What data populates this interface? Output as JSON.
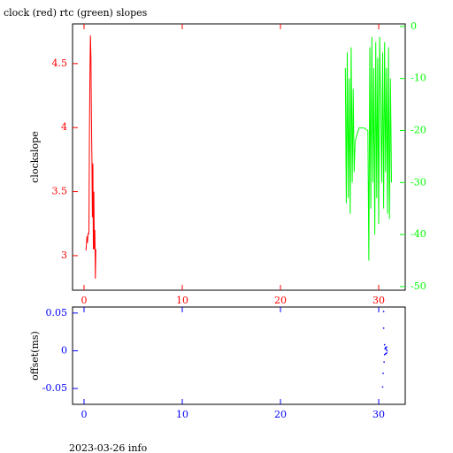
{
  "footer": "2023-03-26 info",
  "chart_data": [
    {
      "type": "line",
      "title": "clock (red) rtc (green) slopes",
      "ylabel": "clockslope",
      "xlim": [
        -1.17,
        32.7
      ],
      "xticks": [
        0,
        10,
        20,
        30
      ],
      "ylim": [
        2.73,
        4.81
      ],
      "yticks": [
        3,
        3.5,
        4,
        4.5
      ],
      "y2lim": [
        -50.7,
        0.5
      ],
      "y2ticks": [
        0,
        -10,
        -20,
        -30,
        -40,
        -50
      ],
      "series": [
        {
          "color": "#ff0000",
          "x": [
            0.2,
            0.3,
            0.35,
            0.4,
            0.5,
            0.55,
            0.6,
            0.65,
            0.7,
            0.75,
            0.8,
            0.85,
            0.9,
            0.95,
            1.0,
            1.05,
            1.1,
            1.15,
            1.2
          ],
          "values": [
            3.04,
            3.15,
            3.1,
            3.17,
            3.17,
            3.97,
            4.38,
            4.72,
            4.55,
            4.1,
            3.75,
            3.3,
            3.72,
            3.05,
            3.5,
            3.05,
            3.2,
            2.82,
            3.05
          ]
        },
        {
          "color": "#00ff00",
          "axis": "y2",
          "x": [
            26.6,
            26.7,
            26.8,
            26.9,
            27.0,
            27.1,
            27.2,
            27.3,
            27.4,
            27.5,
            27.6,
            28.0,
            28.5,
            28.9,
            29.0,
            29.1,
            29.2,
            29.3,
            29.4,
            29.5,
            29.6,
            29.7,
            29.8,
            29.9,
            30.0,
            30.1,
            30.2,
            30.3,
            30.4,
            30.5,
            30.6,
            30.7,
            30.8,
            30.9,
            31.0,
            31.1,
            31.2,
            31.3
          ],
          "values": [
            -8,
            -34,
            -5,
            -33,
            -10,
            -36,
            -4,
            -30,
            -12,
            -28,
            -22,
            -19.5,
            -19.5,
            -20,
            -45,
            -4,
            -35,
            -2,
            -30,
            -8,
            -40,
            -3,
            -33,
            -6,
            -38,
            -2,
            -15,
            -30,
            -5,
            -35,
            -3,
            -28,
            -8,
            -36,
            -4,
            -37,
            -10,
            -30
          ]
        }
      ]
    },
    {
      "type": "scatter",
      "ylabel": "offset(ms)",
      "xlim": [
        -1.17,
        32.7
      ],
      "xticks": [
        0,
        10,
        20,
        30
      ],
      "ylim": [
        -0.071,
        0.058
      ],
      "yticks": [
        0.05,
        0,
        -0.05
      ],
      "series": [
        {
          "color": "#0000ff",
          "x": [
            30.4,
            30.45,
            30.5,
            30.5,
            30.55,
            30.6,
            30.6,
            30.65,
            30.7,
            30.7,
            30.75,
            30.8,
            30.8,
            30.85
          ],
          "values": [
            -0.048,
            -0.03,
            0.052,
            0.03,
            -0.015,
            0.008,
            -0.005,
            0.003,
            0.004,
            -0.004,
            0.002,
            -0.003,
            0.005,
            0.0
          ]
        }
      ]
    }
  ]
}
